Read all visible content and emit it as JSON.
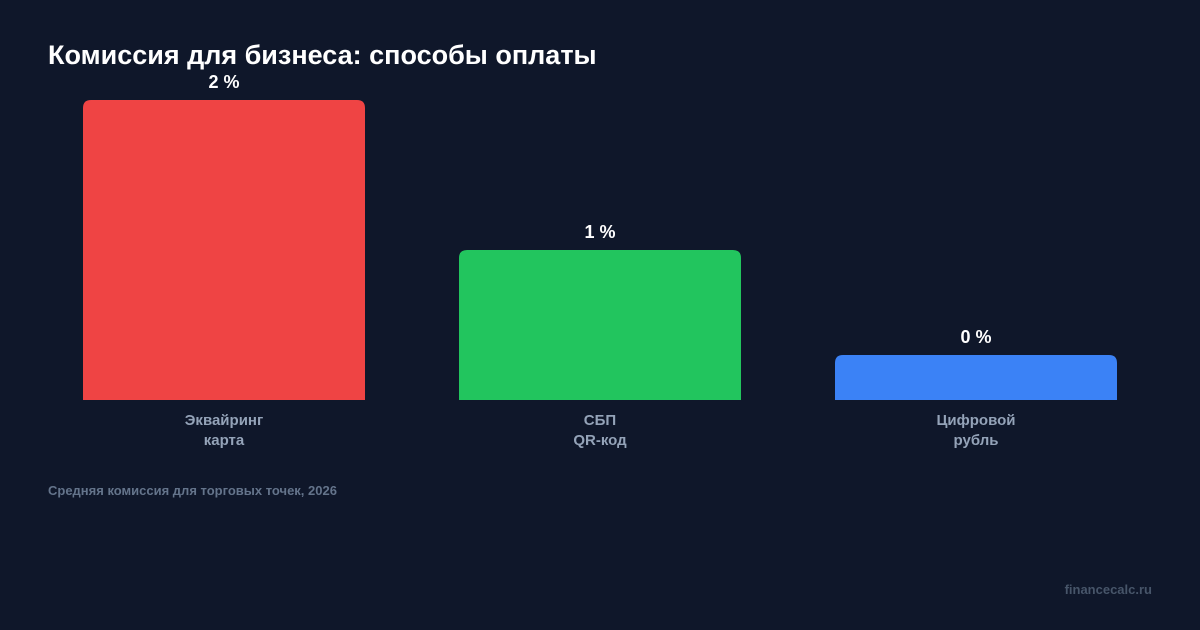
{
  "title": "Комиссия для бизнеса: способы оплаты",
  "note": "Средняя комиссия для торговых точек, 2026",
  "brand": "financecalc.ru",
  "chart_data": {
    "type": "bar",
    "title": "Комиссия для бизнеса: способы оплаты",
    "categories": [
      [
        "Эквайринг",
        "карта"
      ],
      [
        "СБП",
        "QR-код"
      ],
      [
        "Цифровой",
        "рубль"
      ]
    ],
    "values": [
      2,
      1,
      0
    ],
    "value_labels": [
      "2 %",
      "1 %",
      "0 %"
    ],
    "colors": [
      "#ef4444",
      "#22c55e",
      "#3b82f6"
    ],
    "unit": "%",
    "ylim": [
      0,
      2
    ],
    "grid": false,
    "legend": "none"
  },
  "colors": {
    "background": "#0f172a",
    "title": "#ffffff",
    "category_label": "#94a3b8",
    "note": "#64748b",
    "brand": "#475569"
  }
}
